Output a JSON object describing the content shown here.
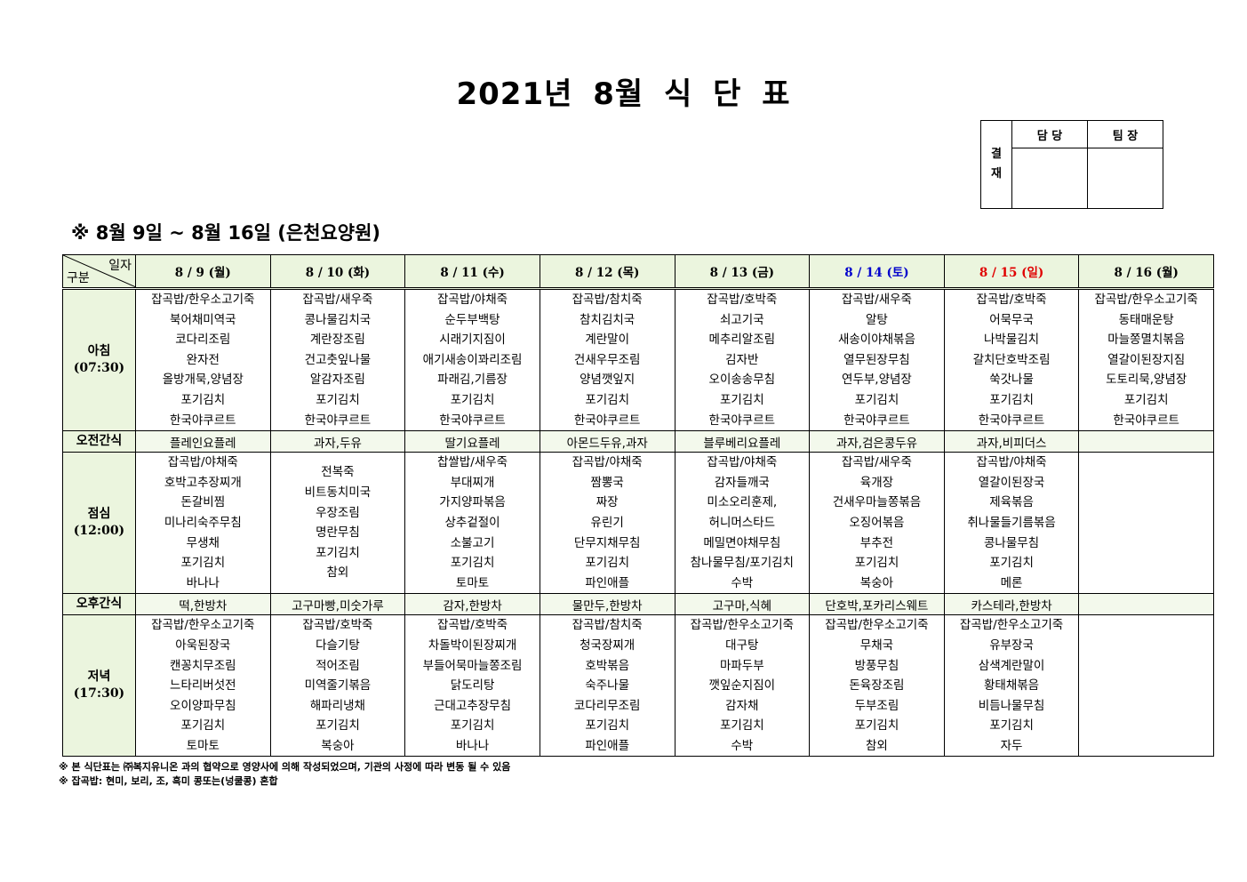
{
  "title": "2021년 8월 식 단 표",
  "approval": {
    "side_label": "결\n재",
    "columns": [
      "담 당",
      "팀 장"
    ]
  },
  "subtitle": "※ 8월 9일 ~ 8월 16일 (은천요양원)",
  "corner": {
    "top": "일자",
    "bottom": "구분"
  },
  "colors": {
    "header_bg": "#ebf5de",
    "saturday": "#0000cc",
    "sunday": "#e00000"
  },
  "days": [
    {
      "label": "8 / 9 (월)",
      "color": "#000000"
    },
    {
      "label": "8 / 10 (화)",
      "color": "#000000"
    },
    {
      "label": "8 / 11 (수)",
      "color": "#000000"
    },
    {
      "label": "8 / 12 (목)",
      "color": "#000000"
    },
    {
      "label": "8 / 13 (금)",
      "color": "#000000"
    },
    {
      "label": "8 / 14 (토)",
      "color": "#0000cc"
    },
    {
      "label": "8 / 15 (일)",
      "color": "#e00000"
    },
    {
      "label": "8 / 16 (월)",
      "color": "#000000"
    }
  ],
  "rows": [
    {
      "type": "meal",
      "label": "아침",
      "time": "(07:30)",
      "cells": [
        [
          "잡곡밥/한우소고기죽",
          "북어채미역국",
          "코다리조림",
          "완자전",
          "올방개묵,양념장",
          "포기김치",
          "한국야쿠르트"
        ],
        [
          "잡곡밥/새우죽",
          "콩나물김치국",
          "계란장조림",
          "건고춧잎나물",
          "알감자조림",
          "포기김치",
          "한국야쿠르트"
        ],
        [
          "잡곡밥/야채죽",
          "순두부백탕",
          "시래기지짐이",
          "애기새송이꽈리조림",
          "파래김,기름장",
          "포기김치",
          "한국야쿠르트"
        ],
        [
          "잡곡밥/참치죽",
          "참치김치국",
          "계란말이",
          "건새우무조림",
          "양념깻잎지",
          "포기김치",
          "한국야쿠르트"
        ],
        [
          "잡곡밥/호박죽",
          "쇠고기국",
          "메추리알조림",
          "김자반",
          "오이송송무침",
          "포기김치",
          "한국야쿠르트"
        ],
        [
          "잡곡밥/새우죽",
          "알탕",
          "새송이야채볶음",
          "열무된장무침",
          "연두부,양념장",
          "포기김치",
          "한국야쿠르트"
        ],
        [
          "잡곡밥/호박죽",
          "어묵무국",
          "나박물김치",
          "갈치단호박조림",
          "쑥갓나물",
          "포기김치",
          "한국야쿠르트"
        ],
        [
          "잡곡밥/한우소고기죽",
          "동태매운탕",
          "마늘쫑멸치볶음",
          "열갈이된장지짐",
          "도토리묵,양념장",
          "포기김치",
          "한국야쿠르트"
        ]
      ]
    },
    {
      "type": "snack",
      "label": "오전간식",
      "cells": [
        "플레인요플레",
        "과자,두유",
        "딸기요플레",
        "아몬드두유,과자",
        "블루베리요플레",
        "과자,검은콩두유",
        "과자,비피더스",
        ""
      ]
    },
    {
      "type": "meal",
      "label": "점심",
      "time": "(12:00)",
      "cells": [
        [
          "잡곡밥/야채죽",
          "호박고추장찌개",
          "돈갈비찜",
          "미나리숙주무침",
          "무생채",
          "포기김치",
          "바나나"
        ],
        [
          "전복죽",
          "비트동치미국",
          "우장조림",
          "명란무침",
          "포기김치",
          "참외"
        ],
        [
          "찹쌀밥/새우죽",
          "부대찌개",
          "가지양파볶음",
          "상추겉절이",
          "소불고기",
          "포기김치",
          "토마토"
        ],
        [
          "잡곡밥/야채죽",
          "짬뽕국",
          "짜장",
          "유린기",
          "단무지채무침",
          "포기김치",
          "파인애플"
        ],
        [
          "잡곡밥/야채죽",
          "감자들깨국",
          "미소오리훈제,",
          "허니머스타드",
          "메밀면야채무침",
          "참나물무침/포기김치",
          "수박"
        ],
        [
          "잡곡밥/새우죽",
          "육개장",
          "건새우마늘쫑볶음",
          "오징어볶음",
          "부추전",
          "포기김치",
          "복숭아"
        ],
        [
          "잡곡밥/야채죽",
          "열갈이된장국",
          "제육볶음",
          "취나물들기름볶음",
          "콩나물무침",
          "포기김치",
          "메론"
        ],
        []
      ]
    },
    {
      "type": "snack",
      "label": "오후간식",
      "cells": [
        "떡,한방차",
        "고구마빵,미숫가루",
        "감자,한방차",
        "물만두,한방차",
        "고구마,식혜",
        "단호박,포카리스웨트",
        "카스테라,한방차",
        ""
      ]
    },
    {
      "type": "meal",
      "label": "저녁",
      "time": "(17:30)",
      "cells": [
        [
          "잡곡밥/한우소고기죽",
          "아욱된장국",
          "캔꽁치무조림",
          "느타리버섯전",
          "오이양파무침",
          "포기김치",
          "토마토"
        ],
        [
          "잡곡밥/호박죽",
          "다슬기탕",
          "적어조림",
          "미역줄기볶음",
          "해파리냉채",
          "포기김치",
          "복숭아"
        ],
        [
          "잡곡밥/호박죽",
          "차돌박이된장찌개",
          "부들어묵마늘쫑조림",
          "닭도리탕",
          "근대고추장무침",
          "포기김치",
          "바나나"
        ],
        [
          "잡곡밥/참치죽",
          "청국장찌개",
          "호박볶음",
          "숙주나물",
          "코다리무조림",
          "포기김치",
          "파인애플"
        ],
        [
          "잡곡밥/한우소고기죽",
          "대구탕",
          "마파두부",
          "깻잎순지짐이",
          "감자채",
          "포기김치",
          "수박"
        ],
        [
          "잡곡밥/한우소고기죽",
          "무채국",
          "방풍무침",
          "돈육장조림",
          "두부조림",
          "포기김치",
          "참외"
        ],
        [
          "잡곡밥/한우소고기죽",
          "유부장국",
          "삼색계란말이",
          "황태채볶음",
          "비듬나물무침",
          "포기김치",
          "자두"
        ],
        []
      ]
    }
  ],
  "notes": [
    "※ 본 식단표는 ㈜복지유니온 과의 협약으로 영양사에 의해 작성되었으며, 기관의 사정에 따라 변동 될 수 있음",
    "※ 잡곡밥: 현미, 보리, 조, 흑미 콩또는(넝쿨콩) 혼합"
  ]
}
